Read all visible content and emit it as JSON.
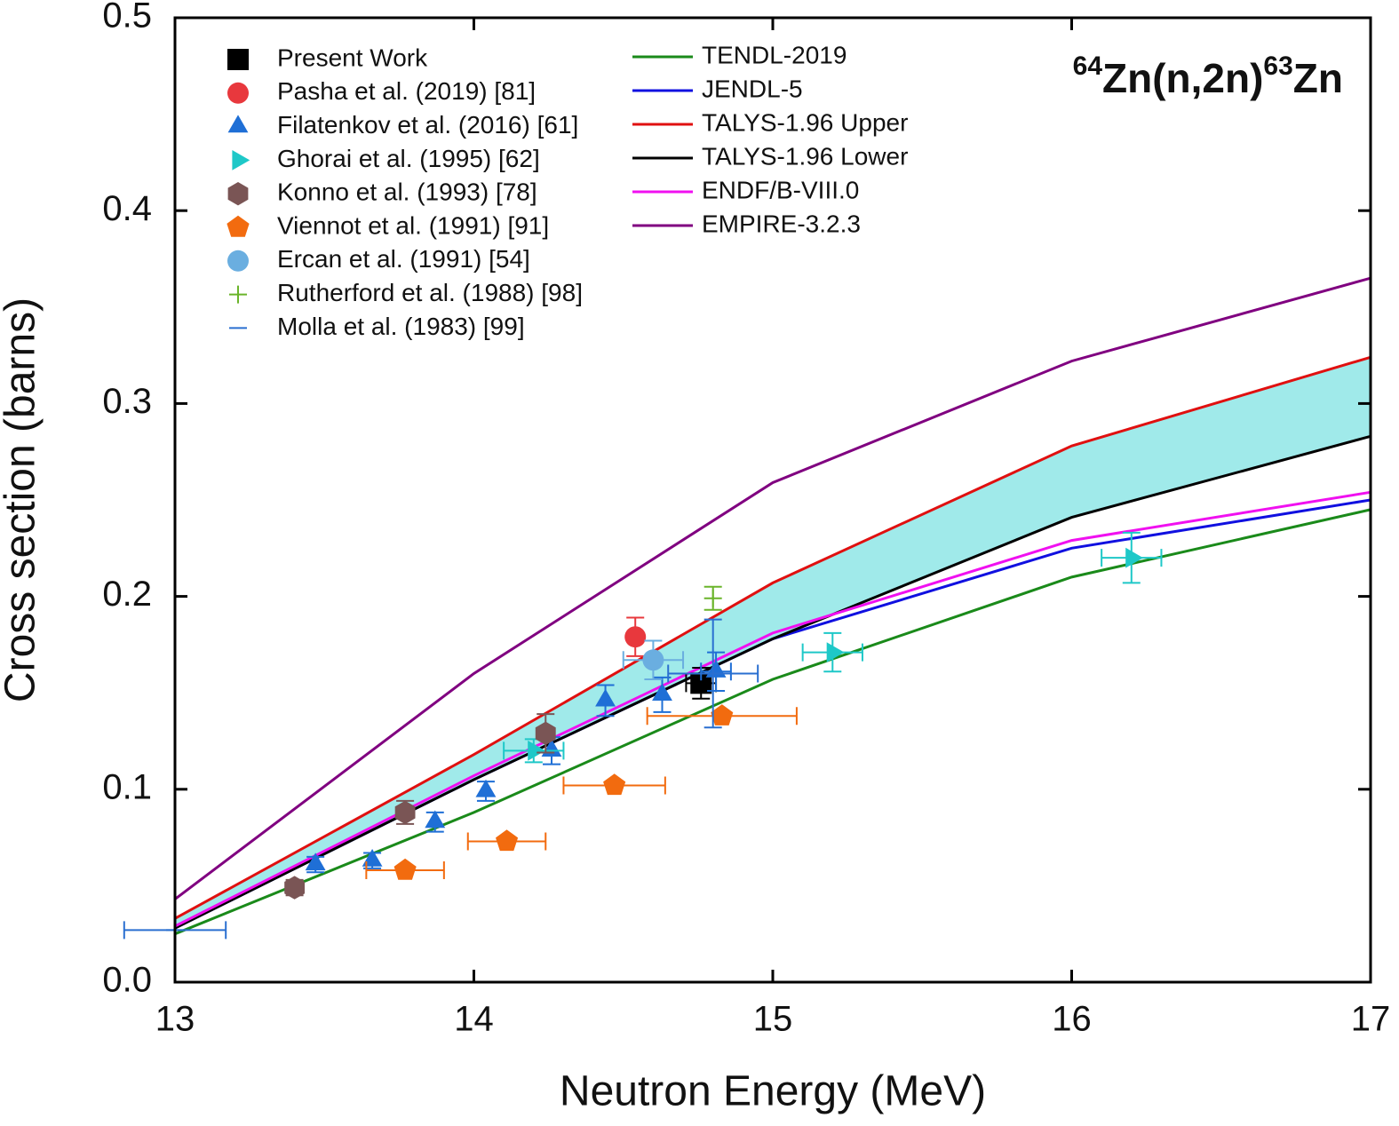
{
  "chart_data": {
    "type": "line",
    "title": [
      "64",
      "Zn(n,2n)",
      "63",
      "Zn"
    ],
    "xlabel": "Neutron Energy (MeV)",
    "ylabel": "Cross section (barns)",
    "xlim": [
      13,
      17
    ],
    "xticks": [
      13,
      14,
      15,
      16,
      17
    ],
    "ylim": [
      0,
      0.5
    ],
    "yticks": [
      {
        "value": 0,
        "label": "0.0"
      },
      0.1,
      0.2,
      0.3,
      0.4,
      0.5
    ],
    "band": {
      "between": [
        11,
        12
      ],
      "color": "#8fe6e6"
    },
    "series": [
      {
        "name": "Present Work",
        "marker": "square",
        "color": "#000000",
        "x": [
          14.76
        ],
        "values": [
          0.155
        ],
        "xerr": [
          0.05
        ],
        "yerr": [
          0.008
        ]
      },
      {
        "name": "Pasha et al. (2019) [81]",
        "marker": "circle",
        "color": "#e8383d",
        "x": [
          14.54
        ],
        "values": [
          0.179
        ],
        "xerr": [
          null
        ],
        "yerr": [
          0.01
        ]
      },
      {
        "name": "Filatenkov et al. (2016) [61]",
        "marker": "triangle",
        "color": "#1f6fd6",
        "x": [
          13.47,
          13.66,
          13.87,
          14.04,
          14.26,
          14.44,
          14.63,
          14.81
        ],
        "values": [
          0.061,
          0.063,
          0.083,
          0.099,
          0.12,
          0.146,
          0.149,
          0.161
        ],
        "xerr": [
          null,
          null,
          null,
          null,
          null,
          null,
          null,
          0.05
        ],
        "yerr": [
          0.004,
          0.004,
          0.005,
          0.005,
          0.007,
          0.008,
          0.009,
          0.01
        ]
      },
      {
        "name": "Ghorai et al. (1995) [62]",
        "marker": "right-triangle",
        "color": "#1ec8c8",
        "x": [
          14.2,
          15.2,
          16.2
        ],
        "values": [
          0.12,
          0.171,
          0.22
        ],
        "xerr": [
          0.1,
          0.1,
          0.1
        ],
        "yerr": [
          0.006,
          0.01,
          0.013
        ]
      },
      {
        "name": "Konno et al. (1993) [78]",
        "marker": "hexagon",
        "color": "#7a5555",
        "x": [
          13.4,
          13.77,
          14.24
        ],
        "values": [
          0.049,
          0.088,
          0.129
        ],
        "xerr": [
          null,
          null,
          null
        ],
        "yerr": [
          0.004,
          0.006,
          0.01
        ]
      },
      {
        "name": "Viennot et al. (1991) [91]",
        "marker": "pentagon",
        "color": "#f26b0f",
        "x": [
          13.77,
          14.11,
          14.47,
          14.83
        ],
        "values": [
          0.058,
          0.073,
          0.102,
          0.138
        ],
        "xerr": [
          0.13,
          0.13,
          0.17,
          0.25
        ],
        "yerr": [
          null,
          null,
          null,
          null
        ]
      },
      {
        "name": "Ercan et al. (1991) [54]",
        "marker": "circle",
        "color": "#6aaee0",
        "x": [
          14.6
        ],
        "values": [
          0.167
        ],
        "xerr": [
          0.1
        ],
        "yerr": [
          0.01
        ]
      },
      {
        "name": "Rutherford et al. (1988) [98]",
        "marker": "plus",
        "color": "#6ab42a",
        "x": [
          14.8
        ],
        "values": [
          0.199
        ],
        "xerr": [
          null
        ],
        "yerr": [
          0.006
        ]
      },
      {
        "name": "Molla et al. (1983) [99]",
        "marker": "dash",
        "color": "#2a6fd0",
        "x": [
          13.0,
          14.8
        ],
        "values": [
          0.027,
          0.16
        ],
        "xerr": [
          0.17,
          0.15
        ],
        "yerr": [
          null,
          0.028
        ]
      },
      {
        "name": "TENDL-2019",
        "color": "#1a8a1a",
        "x": [
          13,
          14,
          15,
          16,
          17
        ],
        "values": [
          0.025,
          0.088,
          0.157,
          0.21,
          0.245
        ]
      },
      {
        "name": "JENDL-5",
        "color": "#1010e0",
        "x": [
          13,
          14,
          15,
          16,
          17
        ],
        "values": [
          0.028,
          0.105,
          0.178,
          0.225,
          0.25
        ]
      },
      {
        "name": "TALYS-1.96 Upper",
        "color": "#e01010",
        "x": [
          13,
          14,
          15,
          16,
          17
        ],
        "values": [
          0.033,
          0.118,
          0.207,
          0.278,
          0.324
        ]
      },
      {
        "name": "TALYS-1.96 Lower",
        "color": "#000000",
        "x": [
          13,
          14,
          15,
          16,
          17
        ],
        "values": [
          0.028,
          0.105,
          0.178,
          0.241,
          0.283
        ]
      },
      {
        "name": "ENDF/B-VIII.0",
        "color": "#f010f0",
        "x": [
          13,
          14,
          15,
          16,
          17
        ],
        "values": [
          0.029,
          0.107,
          0.181,
          0.229,
          0.254
        ]
      },
      {
        "name": "EMPIRE-3.2.3",
        "color": "#800080",
        "x": [
          13,
          14,
          15,
          16,
          17
        ],
        "values": [
          0.043,
          0.16,
          0.259,
          0.322,
          0.365
        ]
      }
    ]
  }
}
